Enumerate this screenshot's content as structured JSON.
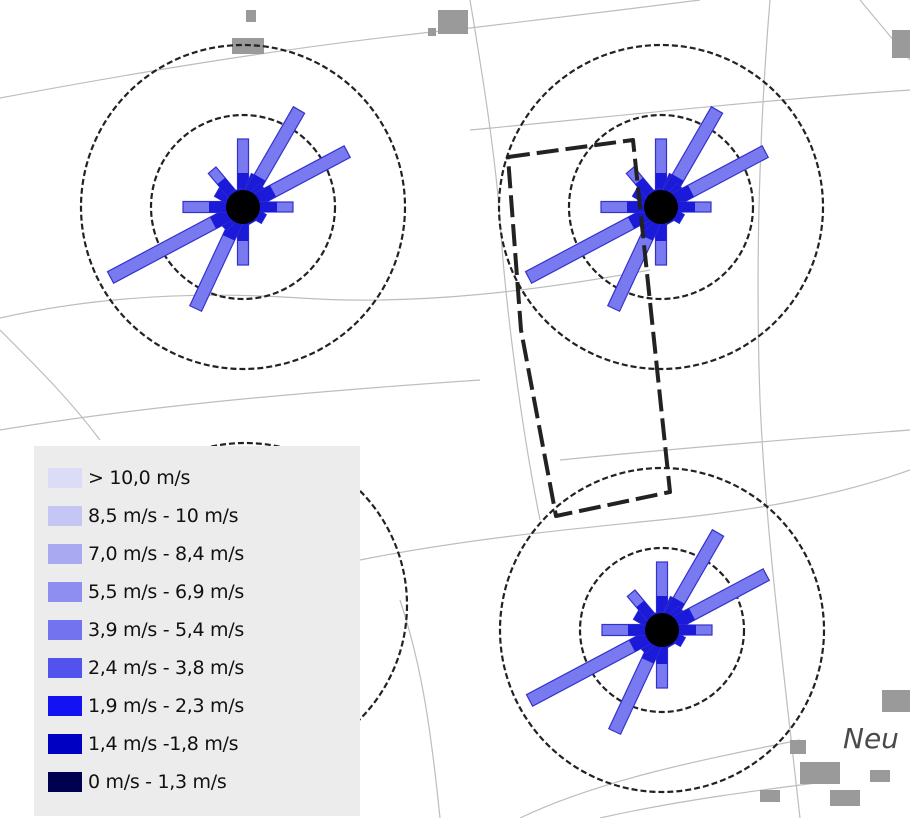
{
  "place_label": "Neu",
  "legend": {
    "items": [
      {
        "label": "> 10,0 m/s",
        "color": "#dcdcf7"
      },
      {
        "label": "8,5 m/s - 10 m/s",
        "color": "#c6c6f5"
      },
      {
        "label": "7,0 m/s - 8,4 m/s",
        "color": "#a9a9f2"
      },
      {
        "label": "5,5 m/s - 6,9 m/s",
        "color": "#8e8ef0"
      },
      {
        "label": "3,9 m/s - 5,4 m/s",
        "color": "#7373ef"
      },
      {
        "label": "2,4 m/s - 3,8 m/s",
        "color": "#5252ee"
      },
      {
        "label": "1,9 m/s - 2,3 m/s",
        "color": "#1212f2"
      },
      {
        "label": "1,4 m/s -1,8 m/s",
        "color": "#0000c2"
      },
      {
        "label": "0 m/s - 1,3 m/s",
        "color": "#000050"
      }
    ]
  },
  "colors": {
    "petal_fill": "#7a7af0",
    "petal_edge": "#3333cc",
    "center": "#000000",
    "ring": "#222222",
    "road": "#bdbdbd",
    "building": "#9a9a9a",
    "dashed_boundary": "#222222"
  }
}
